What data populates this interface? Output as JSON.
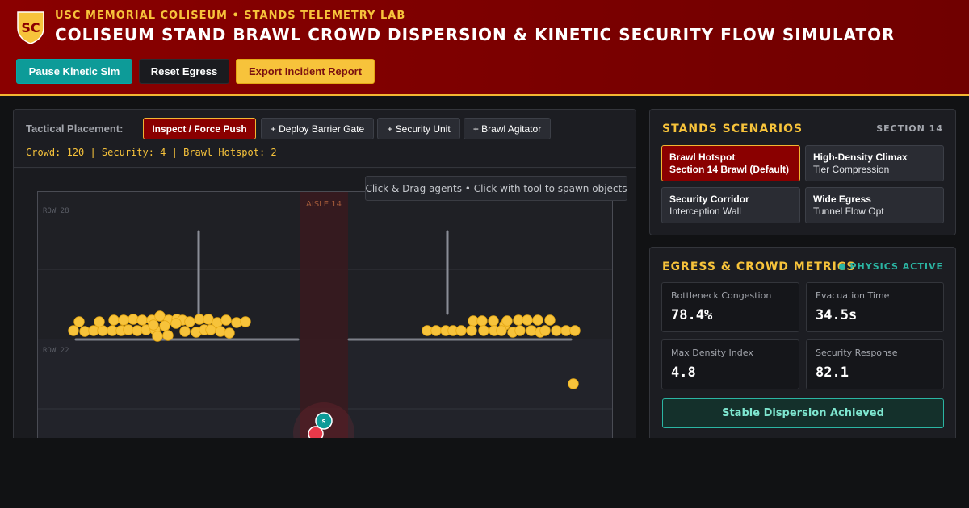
{
  "header": {
    "supertitle": "USC MEMORIAL COLISEUM • STANDS TELEMETRY LAB",
    "title": "COLISEUM STAND BRAWL CROWD DISPERSION & KINETIC SECURITY FLOW SIMULATOR",
    "crest_text": "SC",
    "buttons": {
      "pause": "Pause Kinetic Sim",
      "reset": "Reset Egress",
      "export": "Export Incident Report"
    }
  },
  "toolbar": {
    "label": "Tactical Placement:",
    "tools": [
      {
        "label": "Inspect / Force Push",
        "active": true
      },
      {
        "label": "+ Deploy Barrier Gate",
        "active": false
      },
      {
        "label": "+ Security Unit",
        "active": false
      },
      {
        "label": "+ Brawl Agitator",
        "active": false
      }
    ],
    "stats": "Crowd: 120 | Security: 4 | Brawl Hotspot: 2"
  },
  "canvas": {
    "hint": "Click & Drag agents • Click with tool to spawn objects",
    "row_top": "ROW 28",
    "row_bottom": "ROW 22",
    "aisle": "AISLE 14",
    "security_label": "S"
  },
  "scenarios": {
    "title": "STANDS SCENARIOS",
    "section": "SECTION 14",
    "items": [
      {
        "line1": "Brawl Hotspot",
        "line2": "Section 14 Brawl (Default)",
        "active": true
      },
      {
        "line1": "High-Density Climax",
        "line2": "Tier Compression",
        "active": false
      },
      {
        "line1": "Security Corridor",
        "line2": "Interception Wall",
        "active": false
      },
      {
        "line1": "Wide Egress",
        "line2": "Tunnel Flow Opt",
        "active": false
      }
    ]
  },
  "metrics": {
    "title": "EGRESS & CROWD METRICS",
    "physics_status": "PHYSICS ACTIVE",
    "items": [
      {
        "label": "Bottleneck Congestion",
        "value": "78.4%"
      },
      {
        "label": "Evacuation Time",
        "value": "34.5s"
      },
      {
        "label": "Max Density Index",
        "value": "4.8"
      },
      {
        "label": "Security Response",
        "value": "82.1"
      }
    ],
    "status": "Stable Dispersion Achieved"
  },
  "colors": {
    "cardinal": "#8a0000",
    "gold": "#f7c33b",
    "teal": "#0d9b98",
    "agitator": "#e8394a"
  }
}
